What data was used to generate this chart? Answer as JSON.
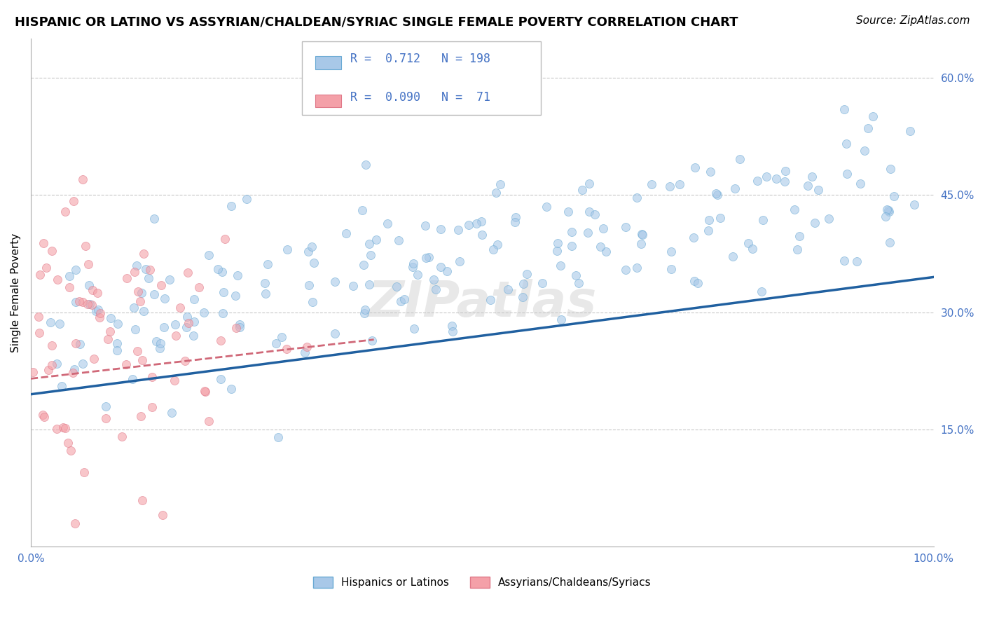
{
  "title": "HISPANIC OR LATINO VS ASSYRIAN/CHALDEAN/SYRIAC SINGLE FEMALE POVERTY CORRELATION CHART",
  "source": "Source: ZipAtlas.com",
  "ylabel": "Single Female Poverty",
  "legend_blue_R": "0.712",
  "legend_blue_N": "198",
  "legend_pink_R": "0.090",
  "legend_pink_N": "71",
  "blue_color": "#a8c8e8",
  "pink_color": "#f4a0a8",
  "blue_scatter_edge": "#6aaad4",
  "pink_scatter_edge": "#e07888",
  "blue_line_color": "#2060a0",
  "pink_line_color": "#d06878",
  "grid_color": "#c8c8c8",
  "watermark": "ZIPatlas",
  "title_fontsize": 13,
  "source_fontsize": 11,
  "legend_label_blue": "Hispanics or Latinos",
  "legend_label_pink": "Assyrians/Chaldeans/Syriacs",
  "xmin": 0.0,
  "xmax": 1.0,
  "ymin": 0.0,
  "ymax": 0.65,
  "blue_R": 0.712,
  "pink_R": 0.09,
  "blue_N": 198,
  "pink_N": 71,
  "blue_line_x0": 0.0,
  "blue_line_x1": 1.0,
  "blue_line_y0": 0.195,
  "blue_line_y1": 0.345,
  "pink_line_x0": 0.0,
  "pink_line_x1": 0.38,
  "pink_line_y0": 0.215,
  "pink_line_y1": 0.265,
  "right_yticks": [
    0.15,
    0.3,
    0.45,
    0.6
  ],
  "right_yticklabels": [
    "15.0%",
    "30.0%",
    "45.0%",
    "60.0%"
  ]
}
